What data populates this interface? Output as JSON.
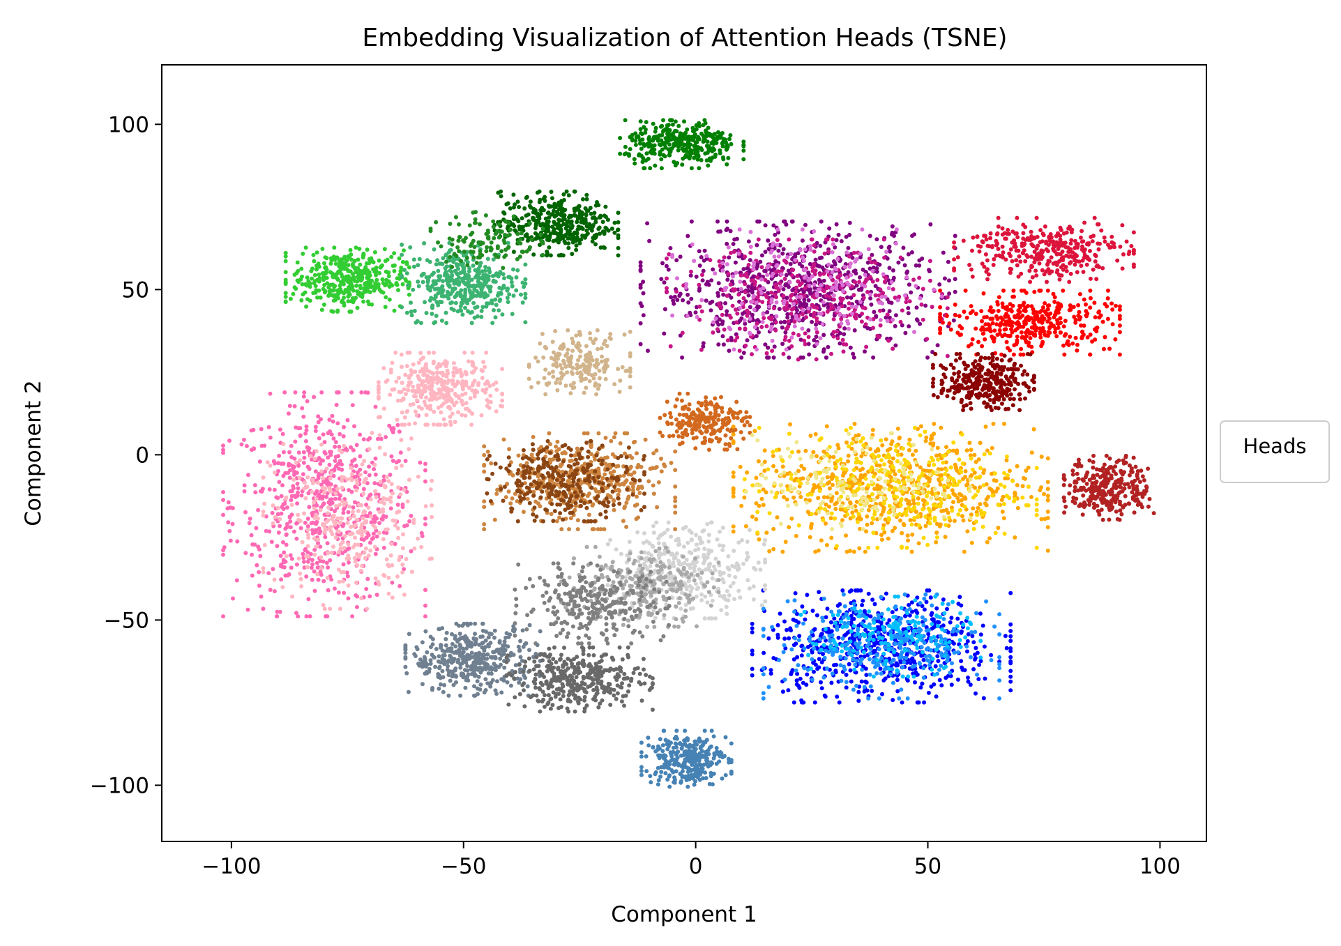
{
  "chart_data": {
    "type": "scatter",
    "title": "Embedding Visualization of Attention Heads (TSNE)",
    "xlabel": "Component 1",
    "ylabel": "Component 2",
    "xlim": [
      -115,
      110
    ],
    "ylim": [
      -117,
      118
    ],
    "xticks": [
      -100,
      -50,
      0,
      50,
      100
    ],
    "yticks": [
      -100,
      -50,
      0,
      50,
      100
    ],
    "xtick_labels": [
      "−100",
      "−50",
      "0",
      "50",
      "100"
    ],
    "ytick_labels": [
      "−100",
      "−50",
      "0",
      "50",
      "100"
    ],
    "grid": false,
    "legend": {
      "title": "Heads",
      "placement": "outside-right"
    },
    "clusters": [
      {
        "color": "#ff69b4",
        "center": [
          -80,
          -15
        ],
        "spread": [
          18,
          28
        ],
        "count": 650
      },
      {
        "color": "#ffb6c1",
        "center": [
          -75,
          -20
        ],
        "spread": [
          15,
          22
        ],
        "count": 300
      },
      {
        "color": "#ffb6c1",
        "center": [
          -55,
          20
        ],
        "spread": [
          11,
          9
        ],
        "count": 350
      },
      {
        "color": "#32cd32",
        "center": [
          -75,
          53
        ],
        "spread": [
          11,
          8
        ],
        "count": 400
      },
      {
        "color": "#3cb371",
        "center": [
          -50,
          52
        ],
        "spread": [
          11,
          10
        ],
        "count": 380
      },
      {
        "color": "#006400",
        "center": [
          -30,
          70
        ],
        "spread": [
          11,
          8
        ],
        "count": 380
      },
      {
        "color": "#228b22",
        "center": [
          -45,
          65
        ],
        "spread": [
          10,
          7
        ],
        "count": 120
      },
      {
        "color": "#008000",
        "center": [
          -3,
          94
        ],
        "spread": [
          11,
          6
        ],
        "count": 330
      },
      {
        "color": "#d2b48c",
        "center": [
          -25,
          28
        ],
        "spread": [
          9,
          8
        ],
        "count": 200
      },
      {
        "color": "#cd853f",
        "center": [
          -25,
          -8
        ],
        "spread": [
          17,
          12
        ],
        "count": 420
      },
      {
        "color": "#8b4513",
        "center": [
          -28,
          -8
        ],
        "spread": [
          14,
          10
        ],
        "count": 300
      },
      {
        "color": "#d2691e",
        "center": [
          2,
          10
        ],
        "spread": [
          8,
          7
        ],
        "count": 220
      },
      {
        "color": "#800080",
        "center": [
          22,
          50
        ],
        "spread": [
          28,
          17
        ],
        "count": 700
      },
      {
        "color": "#c71585",
        "center": [
          24,
          47
        ],
        "spread": [
          25,
          15
        ],
        "count": 350
      },
      {
        "color": "#da70d6",
        "center": [
          24,
          50
        ],
        "spread": [
          24,
          15
        ],
        "count": 200
      },
      {
        "color": "#dc143c",
        "center": [
          75,
          62
        ],
        "spread": [
          16,
          8
        ],
        "count": 330
      },
      {
        "color": "#ff0000",
        "center": [
          72,
          40
        ],
        "spread": [
          16,
          8
        ],
        "count": 380
      },
      {
        "color": "#8b0000",
        "center": [
          62,
          22
        ],
        "spread": [
          9,
          7
        ],
        "count": 300
      },
      {
        "color": "#b22222",
        "center": [
          89,
          -10
        ],
        "spread": [
          8,
          8
        ],
        "count": 300
      },
      {
        "color": "#ffa500",
        "center": [
          42,
          -10
        ],
        "spread": [
          28,
          16
        ],
        "count": 650
      },
      {
        "color": "#ffd700",
        "center": [
          42,
          -10
        ],
        "spread": [
          26,
          15
        ],
        "count": 300
      },
      {
        "color": "#f0e68c",
        "center": [
          35,
          -8
        ],
        "spread": [
          20,
          12
        ],
        "count": 150
      },
      {
        "color": "#0000ff",
        "center": [
          40,
          -58
        ],
        "spread": [
          23,
          14
        ],
        "count": 600
      },
      {
        "color": "#1e90ff",
        "center": [
          40,
          -58
        ],
        "spread": [
          21,
          13
        ],
        "count": 300
      },
      {
        "color": "#00bfff",
        "center": [
          42,
          -55
        ],
        "spread": [
          16,
          10
        ],
        "count": 150
      },
      {
        "color": "#d3d3d3",
        "center": [
          -2,
          -35
        ],
        "spread": [
          14,
          12
        ],
        "count": 350
      },
      {
        "color": "#a9a9a9",
        "center": [
          -12,
          -40
        ],
        "spread": [
          14,
          10
        ],
        "count": 250
      },
      {
        "color": "#808080",
        "center": [
          -22,
          -45
        ],
        "spread": [
          14,
          10
        ],
        "count": 280
      },
      {
        "color": "#708090",
        "center": [
          -48,
          -62
        ],
        "spread": [
          12,
          9
        ],
        "count": 400
      },
      {
        "color": "#696969",
        "center": [
          -25,
          -68
        ],
        "spread": [
          13,
          8
        ],
        "count": 380
      },
      {
        "color": "#4682b4",
        "center": [
          -2,
          -92
        ],
        "spread": [
          8,
          7
        ],
        "count": 300
      }
    ]
  }
}
